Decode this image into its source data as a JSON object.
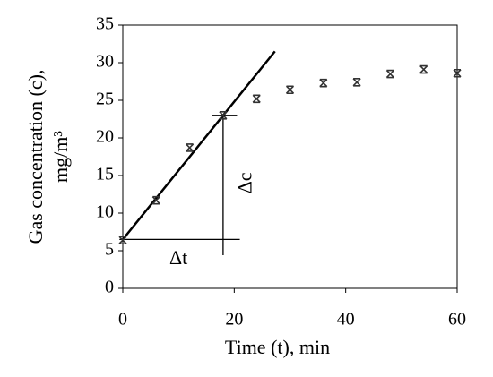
{
  "chart_data": {
    "type": "scatter",
    "x_label": "Time (t), min",
    "y_label": [
      "Gas concentration (c),",
      "mg/m³"
    ],
    "x": [
      0,
      6,
      12,
      18,
      24,
      30,
      36,
      42,
      48,
      54,
      60
    ],
    "series": [
      {
        "color": "#333333",
        "values": [
          6.4,
          11.7,
          18.7,
          23,
          25.2,
          26.4,
          27.3,
          27.4,
          28.5,
          29.1,
          28.6
        ]
      }
    ],
    "xlim": [
      0,
      60
    ],
    "ylim": [
      0,
      35
    ],
    "xticks": [
      0,
      20,
      40,
      60
    ],
    "yticks": [
      0,
      5,
      10,
      15,
      20,
      25,
      30,
      35
    ],
    "lines": [
      {
        "x": [
          0,
          27.3
        ],
        "y": [
          6.5,
          31.5
        ],
        "color": "#000000"
      },
      {
        "x": [
          -0.6,
          21
        ],
        "y": [
          6.5,
          6.5
        ],
        "color": "#000000"
      },
      {
        "x": [
          18,
          18
        ],
        "y": [
          23,
          4.4
        ],
        "color": "#000000"
      },
      {
        "x": [
          16,
          20.5
        ],
        "y": [
          23,
          23
        ],
        "color": "#000000"
      }
    ],
    "annotations": [
      {
        "text": "Δt",
        "x": 10,
        "y": 3.8
      },
      {
        "text": "Δc",
        "x": 22.3,
        "y": 14,
        "rotate": -90
      }
    ]
  }
}
